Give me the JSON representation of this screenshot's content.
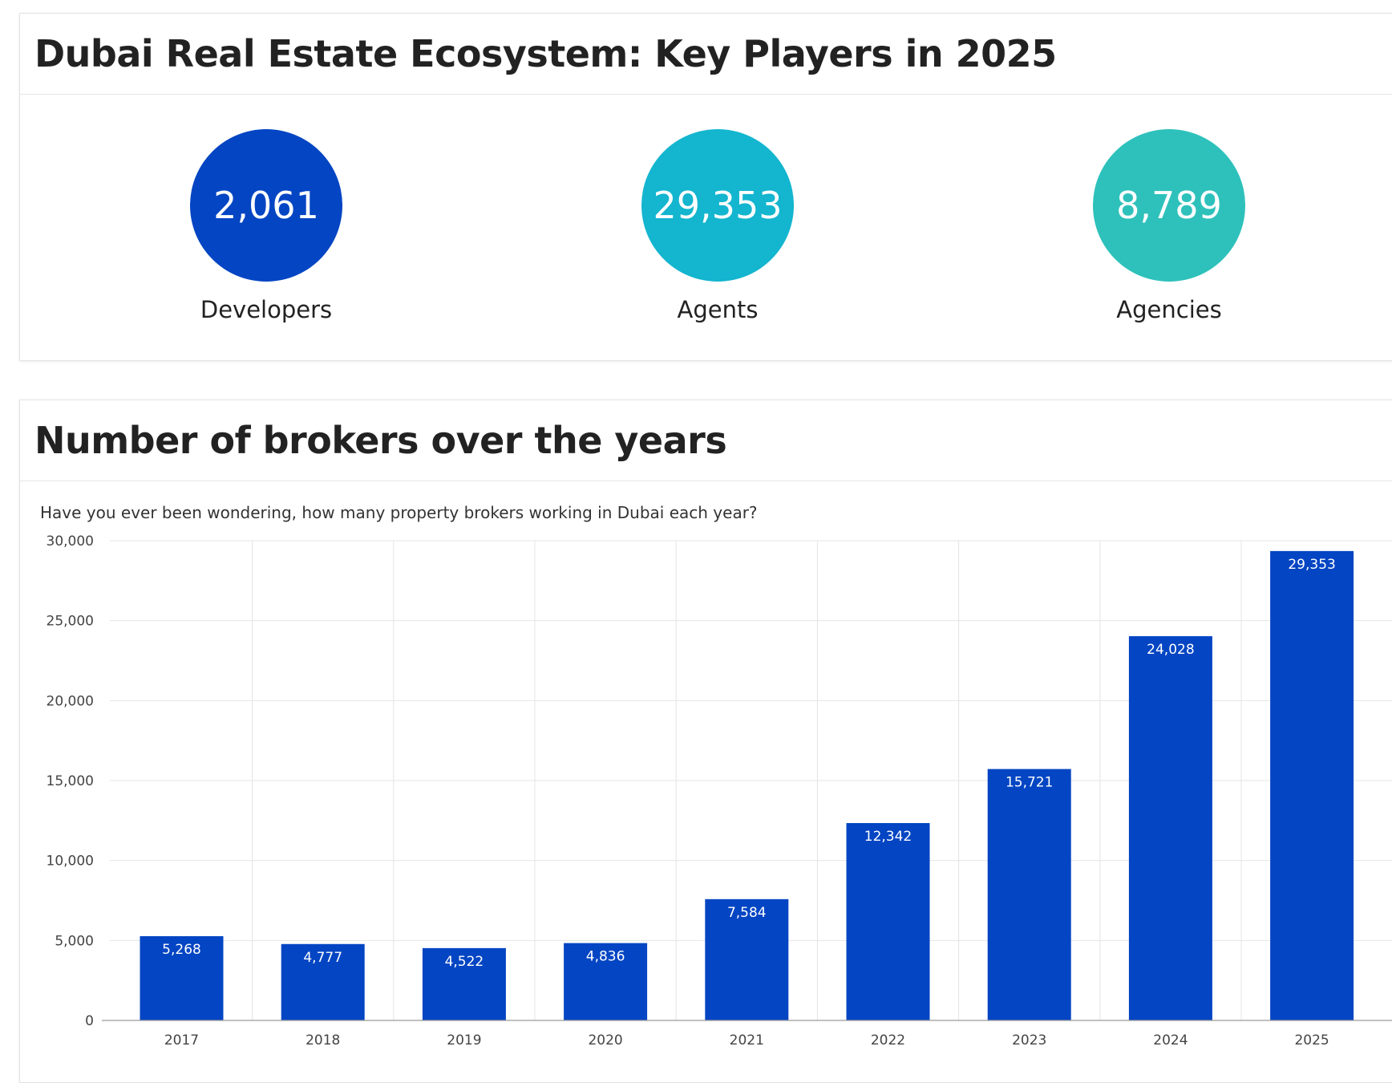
{
  "players": {
    "title": "Dubai Real Estate Ecosystem: Key Players in 2025",
    "stats": [
      {
        "value": "2,061",
        "label": "Developers",
        "color": "#0345c3"
      },
      {
        "value": "29,353",
        "label": "Agents",
        "color": "#13b5cf"
      },
      {
        "value": "8,789",
        "label": "Agencies",
        "color": "#2ec1bb"
      }
    ]
  },
  "brokers": {
    "title": "Number of brokers over the years",
    "subtitle": "Have you ever been wondering, how many property brokers working in Dubai each year?"
  },
  "chart_data": {
    "type": "bar",
    "categories": [
      "2017",
      "2018",
      "2019",
      "2020",
      "2021",
      "2022",
      "2023",
      "2024",
      "2025"
    ],
    "values": [
      5268,
      4777,
      4522,
      4836,
      7584,
      12342,
      15721,
      24028,
      29353
    ],
    "data_labels": [
      "5,268",
      "4,777",
      "4,522",
      "4,836",
      "7,584",
      "12,342",
      "15,721",
      "24,028",
      "29,353"
    ],
    "yticks": [
      "0",
      "5,000",
      "10,000",
      "15,000",
      "20,000",
      "25,000",
      "30,000"
    ],
    "ylim": [
      0,
      30000
    ],
    "grid": true,
    "bar_color": "#0345c3"
  }
}
